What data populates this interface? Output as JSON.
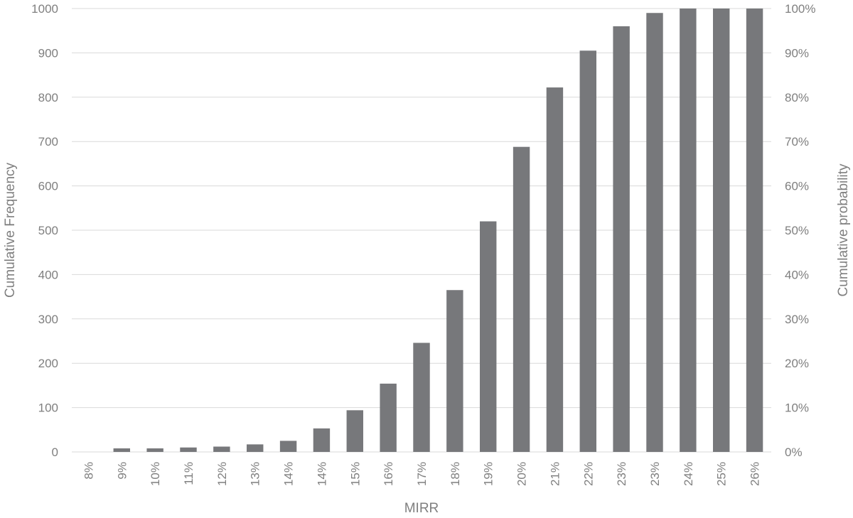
{
  "chart_data": {
    "type": "bar",
    "xlabel": "MIRR",
    "ylabel": "Cumulative Frequency",
    "y2label": "Cumulative probability",
    "categories": [
      "8%",
      "9%",
      "10%",
      "11%",
      "12%",
      "13%",
      "14%",
      "14%",
      "15%",
      "16%",
      "17%",
      "18%",
      "19%",
      "20%",
      "21%",
      "22%",
      "23%",
      "23%",
      "24%",
      "25%",
      "26%"
    ],
    "series": [
      {
        "values": [
          0,
          8,
          8,
          10,
          12,
          17,
          25,
          53,
          94,
          154,
          246,
          365,
          520,
          688,
          822,
          905,
          960,
          990,
          1000,
          1000,
          1000
        ],
        "color": "#77787b"
      }
    ],
    "ylim": [
      0,
      1000
    ],
    "yticks": [
      "0",
      "100",
      "200",
      "300",
      "400",
      "500",
      "600",
      "700",
      "800",
      "900",
      "1000"
    ],
    "y2lim": [
      0,
      1
    ],
    "y2ticks": [
      "0%",
      "10%",
      "20%",
      "30%",
      "40%",
      "50%",
      "60%",
      "70%",
      "80%",
      "90%",
      "100%"
    ],
    "grid": true,
    "legend": "none"
  }
}
